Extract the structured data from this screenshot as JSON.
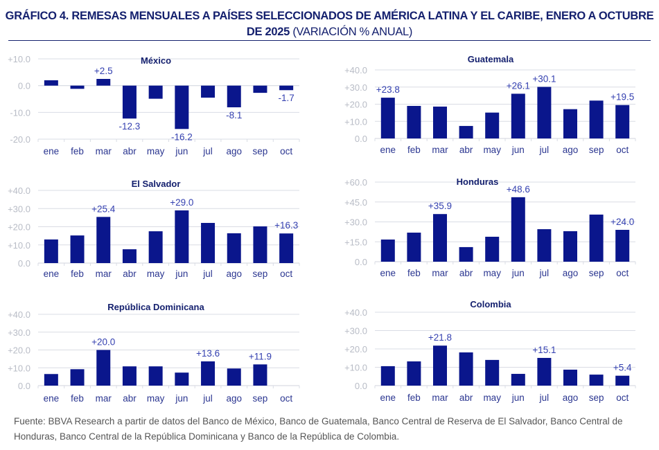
{
  "header": {
    "title_bold": "GRÁFICO 4. REMESAS MENSUALES A PAÍSES SELECCIONADOS DE AMÉRICA LATINA Y EL CARIBE, ENERO A OCTUBRE DE 2025",
    "title_rest": "(VARIACIÓN % ANUAL)"
  },
  "footer": {
    "source": "Fuente: BBVA Research a partir de datos del Banco de México, Banco de Guatemala, Banco Central de Reserva de El Salvador, Banco Central de Honduras, Banco Central de la República Dominicana y Banco de la República de Colombia."
  },
  "colors": {
    "bar": "#0a168c",
    "data_label": "#3440b0",
    "tick_label": "#b8bcc6",
    "grid": "#d9dce4",
    "title": "#14206e",
    "category_label": "#2a3590"
  },
  "chart_data": [
    {
      "type": "bar",
      "title": "México",
      "categories": [
        "ene",
        "feb",
        "mar",
        "abr",
        "may",
        "jun",
        "jul",
        "ago",
        "sep",
        "oct"
      ],
      "values": [
        2.0,
        -1.2,
        2.5,
        -12.3,
        -4.9,
        -16.2,
        -4.5,
        -8.1,
        -2.7,
        -1.7
      ],
      "data_labels": [
        null,
        null,
        "+2.5",
        "-12.3",
        null,
        "-16.2",
        null,
        "-8.1",
        null,
        "-1.7"
      ],
      "ylim": [
        -20,
        10
      ],
      "yticks": [
        "+10.0",
        "0.0",
        "-10.0",
        "-20.0"
      ],
      "grid": true
    },
    {
      "type": "bar",
      "title": "Guatemala",
      "categories": [
        "ene",
        "feb",
        "mar",
        "abr",
        "may",
        "jun",
        "jul",
        "ago",
        "sep",
        "oct"
      ],
      "values": [
        23.8,
        19.0,
        18.6,
        7.3,
        15.1,
        26.1,
        30.1,
        17.1,
        22.1,
        19.5
      ],
      "data_labels": [
        "+23.8",
        null,
        null,
        null,
        null,
        "+26.1",
        "+30.1",
        null,
        null,
        "+19.5"
      ],
      "ylim": [
        0,
        40
      ],
      "yticks": [
        "+40.0",
        "+30.0",
        "+20.0",
        "+10.0",
        "0.0"
      ],
      "grid": true
    },
    {
      "type": "bar",
      "title": "El Salvador",
      "categories": [
        "ene",
        "feb",
        "mar",
        "abr",
        "may",
        "jun",
        "jul",
        "ago",
        "sep",
        "oct"
      ],
      "values": [
        13.0,
        15.2,
        25.4,
        7.6,
        17.5,
        29.0,
        22.1,
        16.4,
        20.2,
        16.3
      ],
      "data_labels": [
        null,
        null,
        "+25.4",
        null,
        null,
        "+29.0",
        null,
        null,
        null,
        "+16.3"
      ],
      "ylim": [
        0,
        40
      ],
      "yticks": [
        "+40.0",
        "+30.0",
        "+20.0",
        "+10.0",
        "0.0"
      ],
      "grid": true
    },
    {
      "type": "bar",
      "title": "Honduras",
      "categories": [
        "ene",
        "feb",
        "mar",
        "abr",
        "may",
        "jun",
        "jul",
        "ago",
        "sep",
        "oct"
      ],
      "values": [
        16.7,
        21.9,
        35.9,
        11.0,
        18.8,
        48.6,
        24.5,
        23.0,
        35.5,
        24.0
      ],
      "data_labels": [
        null,
        null,
        "+35.9",
        null,
        null,
        "+48.6",
        null,
        null,
        null,
        "+24.0"
      ],
      "ylim": [
        0,
        60
      ],
      "yticks": [
        "+60.0",
        "+45.0",
        "+30.0",
        "+15.0",
        "0.0"
      ],
      "grid": true
    },
    {
      "type": "bar",
      "title": "República Dominicana",
      "categories": [
        "ene",
        "feb",
        "mar",
        "abr",
        "may",
        "jun",
        "jul",
        "ago",
        "sep",
        "oct"
      ],
      "values": [
        6.5,
        9.2,
        20.0,
        10.8,
        10.8,
        7.3,
        13.6,
        9.6,
        11.9,
        null
      ],
      "data_labels": [
        null,
        null,
        "+20.0",
        null,
        null,
        null,
        "+13.6",
        null,
        "+11.9",
        null
      ],
      "ylim": [
        0,
        40
      ],
      "yticks": [
        "+40.0",
        "+30.0",
        "+20.0",
        "+10.0",
        "0.0"
      ],
      "grid": true
    },
    {
      "type": "bar",
      "title": "Colombia",
      "categories": [
        "ene",
        "feb",
        "mar",
        "abr",
        "may",
        "jun",
        "jul",
        "ago",
        "sep",
        "oct"
      ],
      "values": [
        10.6,
        13.2,
        21.8,
        18.1,
        14.0,
        6.4,
        15.1,
        8.7,
        6.0,
        5.4
      ],
      "data_labels": [
        null,
        null,
        "+21.8",
        null,
        null,
        null,
        "+15.1",
        null,
        null,
        "+5.4"
      ],
      "ylim": [
        0,
        40
      ],
      "yticks": [
        "+40.0",
        "+30.0",
        "+20.0",
        "+10.0",
        "0.0"
      ],
      "grid": true
    }
  ]
}
